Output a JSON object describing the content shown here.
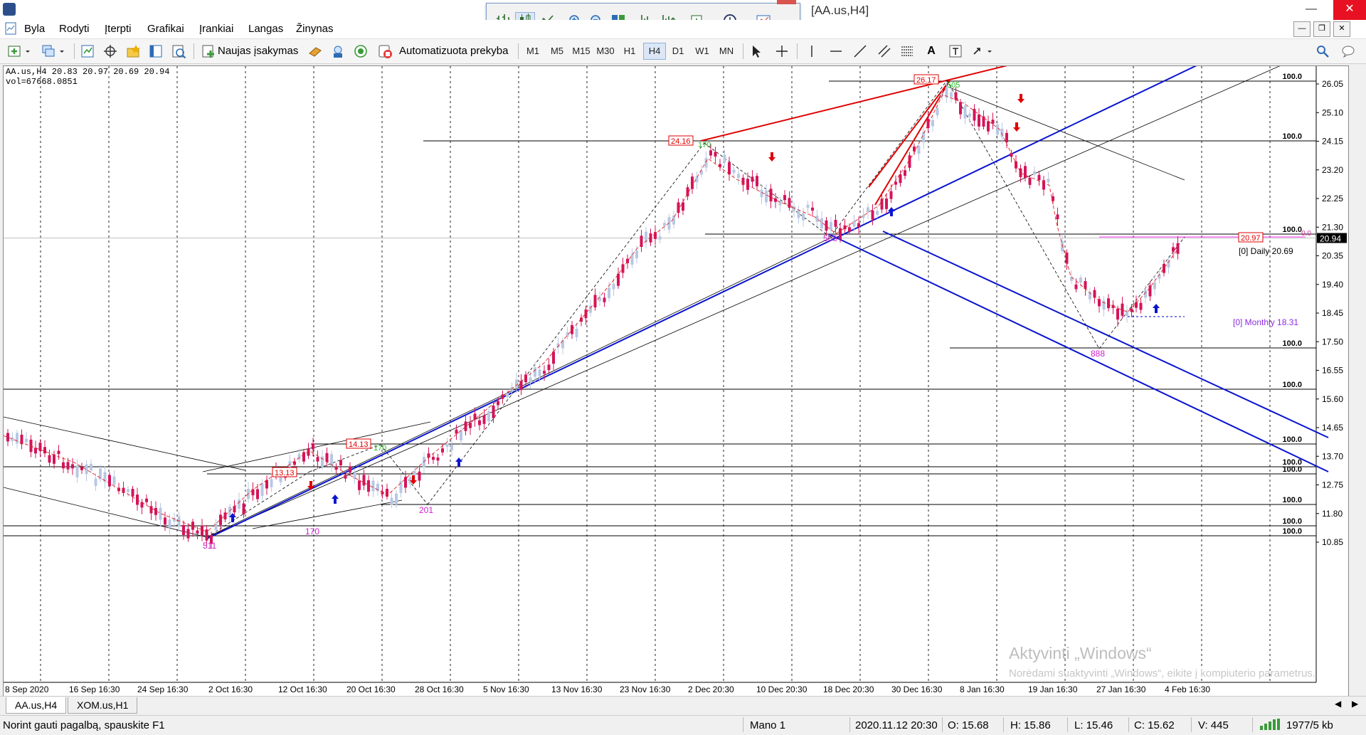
{
  "window": {
    "title": "[AA.us,H4]"
  },
  "menu": {
    "items": [
      "Byla",
      "Rodyti",
      "Įterpti",
      "Grafikai",
      "Įrankiai",
      "Langas",
      "Žinynas"
    ]
  },
  "toolbar": {
    "new_order_label": "Naujas įsakymas",
    "auto_trading_label": "Automatizuota prekyba",
    "timeframes": [
      "M1",
      "M5",
      "M15",
      "M30",
      "H1",
      "H4",
      "D1",
      "W1",
      "MN"
    ],
    "active_timeframe": "H4"
  },
  "chart": {
    "info": "AA.us,H4  20.83 20.97 20.69 20.94",
    "volume": "vol=67668.0851",
    "current_price": "20.94",
    "price_ticks": [
      "26.05",
      "25.10",
      "24.15",
      "23.20",
      "22.25",
      "21.30",
      "20.35",
      "19.40",
      "18.45",
      "17.50",
      "16.55",
      "15.60",
      "14.65",
      "13.70",
      "12.75",
      "11.80",
      "10.85"
    ],
    "time_ticks": [
      "8 Sep 2020",
      "16 Sep 16:30",
      "24 Sep 16:30",
      "2 Oct 16:30",
      "12 Oct 16:30",
      "20 Oct 16:30",
      "28 Oct 16:30",
      "5 Nov 16:30",
      "13 Nov 16:30",
      "23 Nov 16:30",
      "2 Dec 20:30",
      "10 Dec 20:30",
      "18 Dec 20:30",
      "30 Dec 16:30",
      "8 Jan 16:30",
      "19 Jan 16:30",
      "27 Jan 16:30",
      "4 Feb 16:30"
    ],
    "level_labels": [
      "100.0",
      "100.0",
      "100.0",
      "100.0",
      "100.0",
      "100.0",
      "100.0",
      "100.0",
      "100.0",
      "100.0",
      "100.0"
    ],
    "level_small_label": "0.0",
    "price_boxes": [
      "26.17",
      "24.16",
      "14.13",
      "13.13",
      "20.97"
    ],
    "pivot_labels": [
      "511",
      "170",
      "201",
      "505",
      "888"
    ],
    "green_labels": [
      "170",
      "170",
      "505"
    ],
    "daily_label": "[0] Daily 20.69",
    "monthly_label": "[0] Monthly 18.31",
    "watermark_title": "Aktyvinti „Windows“",
    "watermark_sub": "Norėdami suaktyvinti „Windows“, eikite į kompiuterio parametrus."
  },
  "tabs": [
    "AA.us,H4",
    "XOM.us,H1"
  ],
  "active_tab": "AA.us,H4",
  "status": {
    "help": "Norint gauti pagalbą, spauskite F1",
    "profile": "Mano 1",
    "datetime": "2020.11.12 20:30",
    "open": "O: 15.68",
    "high": "H: 15.86",
    "low": "L: 15.46",
    "close": "C: 15.62",
    "volume": "V: 445",
    "traffic": "1977/5 kb"
  }
}
